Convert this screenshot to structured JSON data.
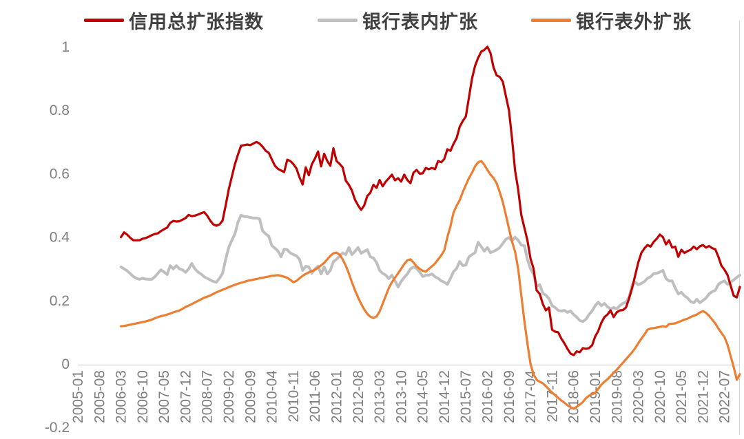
{
  "colors": {
    "background": "#ffffff",
    "axis_line": "#d9d9d9",
    "tick_text": "#7f7f7f",
    "legend_text": "#404040"
  },
  "chart_data": {
    "type": "line",
    "title": "",
    "xlabel": "",
    "ylabel": "",
    "grid": "off",
    "legend_position": "top",
    "x_axis": {
      "first_tick": "2005-01",
      "tick_interval_months": 7,
      "tick_labels": [
        "2005-01",
        "2005-08",
        "2006-03",
        "2006-10",
        "2007-05",
        "2007-12",
        "2008-07",
        "2009-02",
        "2009-09",
        "2010-04",
        "2010-11",
        "2011-06",
        "2012-01",
        "2012-08",
        "2013-03",
        "2013-10",
        "2014-05",
        "2014-12",
        "2015-07",
        "2016-02",
        "2016-09",
        "2017-04",
        "2017-11",
        "2018-06",
        "2019-01",
        "2019-08",
        "2020-03",
        "2020-10",
        "2021-05",
        "2021-12",
        "2022-07"
      ]
    },
    "y_axis": {
      "ticks": [
        1,
        0.8,
        0.6,
        0.4,
        0.2,
        0,
        -0.2
      ],
      "tick_labels": [
        "1",
        "0.8",
        "0.6",
        "0.4",
        "0.2",
        "0",
        "-0.2"
      ],
      "range": [
        -0.2,
        1
      ]
    },
    "data_start": "2006-03",
    "data_end": "2022-12",
    "frequency": "monthly",
    "series": [
      {
        "name": "信用总扩张指数",
        "color": "#c00000",
        "values": [
          0.4,
          0.415,
          0.408,
          0.398,
          0.39,
          0.39,
          0.39,
          0.395,
          0.397,
          0.401,
          0.406,
          0.41,
          0.412,
          0.419,
          0.425,
          0.43,
          0.445,
          0.451,
          0.449,
          0.45,
          0.455,
          0.46,
          0.47,
          0.466,
          0.468,
          0.471,
          0.475,
          0.479,
          0.468,
          0.452,
          0.44,
          0.436,
          0.44,
          0.452,
          0.5,
          0.55,
          0.59,
          0.63,
          0.66,
          0.688,
          0.69,
          0.692,
          0.69,
          0.695,
          0.7,
          0.695,
          0.685,
          0.672,
          0.666,
          0.645,
          0.625,
          0.615,
          0.61,
          0.605,
          0.644,
          0.64,
          0.63,
          0.616,
          0.588,
          0.566,
          0.62,
          0.595,
          0.63,
          0.648,
          0.67,
          0.623,
          0.663,
          0.64,
          0.625,
          0.68,
          0.64,
          0.631,
          0.62,
          0.578,
          0.565,
          0.547,
          0.518,
          0.5,
          0.486,
          0.5,
          0.53,
          0.54,
          0.565,
          0.555,
          0.58,
          0.56,
          0.575,
          0.586,
          0.597,
          0.579,
          0.586,
          0.575,
          0.597,
          0.58,
          0.57,
          0.603,
          0.612,
          0.6,
          0.601,
          0.618,
          0.614,
          0.618,
          0.614,
          0.64,
          0.636,
          0.646,
          0.677,
          0.672,
          0.694,
          0.712,
          0.748,
          0.766,
          0.78,
          0.84,
          0.9,
          0.94,
          0.965,
          0.985,
          0.99,
          1.0,
          0.98,
          0.935,
          0.91,
          0.905,
          0.89,
          0.845,
          0.8,
          0.71,
          0.61,
          0.55,
          0.47,
          0.43,
          0.39,
          0.332,
          0.3,
          0.232,
          0.221,
          0.189,
          0.169,
          0.178,
          0.108,
          0.102,
          0.1,
          0.08,
          0.065,
          0.048,
          0.033,
          0.028,
          0.04,
          0.037,
          0.05,
          0.048,
          0.05,
          0.059,
          0.087,
          0.104,
          0.13,
          0.148,
          0.156,
          0.169,
          0.148,
          0.163,
          0.169,
          0.17,
          0.178,
          0.206,
          0.239,
          0.28,
          0.32,
          0.35,
          0.365,
          0.375,
          0.37,
          0.385,
          0.395,
          0.408,
          0.4,
          0.377,
          0.39,
          0.367,
          0.37,
          0.338,
          0.36,
          0.35,
          0.356,
          0.36,
          0.37,
          0.362,
          0.371,
          0.375,
          0.367,
          0.372,
          0.365,
          0.362,
          0.338,
          0.31,
          0.297,
          0.28,
          0.247,
          0.215,
          0.21,
          0.243
        ]
      },
      {
        "name": "银行表内扩张",
        "color": "#bfbfbf",
        "values": [
          0.306,
          0.3,
          0.294,
          0.285,
          0.276,
          0.27,
          0.267,
          0.27,
          0.268,
          0.267,
          0.267,
          0.275,
          0.286,
          0.297,
          0.29,
          0.282,
          0.31,
          0.3,
          0.31,
          0.3,
          0.297,
          0.289,
          0.3,
          0.317,
          0.3,
          0.29,
          0.284,
          0.275,
          0.27,
          0.265,
          0.26,
          0.258,
          0.27,
          0.286,
          0.33,
          0.367,
          0.39,
          0.41,
          0.447,
          0.469,
          0.465,
          0.464,
          0.462,
          0.46,
          0.46,
          0.458,
          0.42,
          0.41,
          0.403,
          0.373,
          0.365,
          0.356,
          0.338,
          0.362,
          0.36,
          0.35,
          0.345,
          0.341,
          0.33,
          0.295,
          0.308,
          0.306,
          0.286,
          0.3,
          0.308,
          0.284,
          0.306,
          0.284,
          0.295,
          0.323,
          0.33,
          0.34,
          0.35,
          0.345,
          0.367,
          0.345,
          0.355,
          0.367,
          0.349,
          0.355,
          0.36,
          0.338,
          0.334,
          0.32,
          0.295,
          0.286,
          0.28,
          0.269,
          0.28,
          0.262,
          0.243,
          0.26,
          0.273,
          0.284,
          0.3,
          0.306,
          0.301,
          0.29,
          0.276,
          0.28,
          0.28,
          0.284,
          0.275,
          0.27,
          0.262,
          0.258,
          0.251,
          0.27,
          0.291,
          0.301,
          0.323,
          0.31,
          0.312,
          0.338,
          0.345,
          0.351,
          0.384,
          0.37,
          0.356,
          0.367,
          0.351,
          0.355,
          0.36,
          0.367,
          0.38,
          0.393,
          0.399,
          0.388,
          0.4,
          0.39,
          0.375,
          0.373,
          0.33,
          0.3,
          0.282,
          0.245,
          0.25,
          0.223,
          0.217,
          0.206,
          0.184,
          0.178,
          0.169,
          0.167,
          0.169,
          0.163,
          0.167,
          0.156,
          0.148,
          0.137,
          0.134,
          0.141,
          0.156,
          0.167,
          0.184,
          0.195,
          0.184,
          0.191,
          0.18,
          0.174,
          0.178,
          0.174,
          0.184,
          0.191,
          0.195,
          0.21,
          0.25,
          0.258,
          0.25,
          0.254,
          0.26,
          0.27,
          0.275,
          0.285,
          0.286,
          0.29,
          0.295,
          0.269,
          0.262,
          0.262,
          0.24,
          0.221,
          0.226,
          0.215,
          0.208,
          0.197,
          0.193,
          0.204,
          0.193,
          0.2,
          0.208,
          0.221,
          0.228,
          0.232,
          0.251,
          0.258,
          0.262,
          0.251,
          0.258,
          0.265,
          0.273,
          0.28
        ]
      },
      {
        "name": "银行表外扩张",
        "color": "#ed7d31",
        "values": [
          0.119,
          0.12,
          0.122,
          0.124,
          0.126,
          0.128,
          0.13,
          0.132,
          0.134,
          0.137,
          0.14,
          0.144,
          0.148,
          0.151,
          0.153,
          0.156,
          0.159,
          0.163,
          0.166,
          0.169,
          0.174,
          0.18,
          0.184,
          0.189,
          0.194,
          0.199,
          0.204,
          0.209,
          0.212,
          0.216,
          0.221,
          0.226,
          0.23,
          0.234,
          0.238,
          0.242,
          0.246,
          0.25,
          0.253,
          0.256,
          0.259,
          0.262,
          0.264,
          0.266,
          0.268,
          0.27,
          0.272,
          0.274,
          0.276,
          0.278,
          0.279,
          0.28,
          0.278,
          0.275,
          0.272,
          0.265,
          0.258,
          0.262,
          0.27,
          0.278,
          0.284,
          0.289,
          0.293,
          0.297,
          0.304,
          0.311,
          0.319,
          0.33,
          0.341,
          0.349,
          0.351,
          0.345,
          0.33,
          0.31,
          0.285,
          0.258,
          0.232,
          0.21,
          0.19,
          0.172,
          0.158,
          0.149,
          0.145,
          0.15,
          0.166,
          0.19,
          0.215,
          0.24,
          0.258,
          0.272,
          0.286,
          0.3,
          0.315,
          0.327,
          0.33,
          0.32,
          0.308,
          0.3,
          0.294,
          0.291,
          0.3,
          0.308,
          0.317,
          0.33,
          0.342,
          0.358,
          0.4,
          0.434,
          0.477,
          0.499,
          0.516,
          0.542,
          0.564,
          0.586,
          0.603,
          0.623,
          0.636,
          0.64,
          0.628,
          0.612,
          0.597,
          0.586,
          0.57,
          0.542,
          0.51,
          0.47,
          0.427,
          0.386,
          0.354,
          0.3,
          0.217,
          0.137,
          0.065,
          0.0,
          -0.033,
          -0.05,
          -0.056,
          -0.061,
          -0.07,
          -0.08,
          -0.09,
          -0.098,
          -0.107,
          -0.115,
          -0.122,
          -0.13,
          -0.136,
          -0.141,
          -0.135,
          -0.128,
          -0.12,
          -0.108,
          -0.1,
          -0.095,
          -0.091,
          -0.078,
          -0.065,
          -0.056,
          -0.048,
          -0.038,
          -0.028,
          -0.018,
          -0.007,
          0.004,
          0.015,
          0.026,
          0.037,
          0.05,
          0.065,
          0.08,
          0.093,
          0.108,
          0.112,
          0.113,
          0.115,
          0.117,
          0.119,
          0.117,
          0.126,
          0.127,
          0.128,
          0.132,
          0.136,
          0.14,
          0.143,
          0.148,
          0.152,
          0.156,
          0.162,
          0.167,
          0.161,
          0.152,
          0.14,
          0.128,
          0.112,
          0.098,
          0.085,
          0.06,
          0.025,
          -0.01,
          -0.05,
          -0.032
        ]
      }
    ]
  }
}
